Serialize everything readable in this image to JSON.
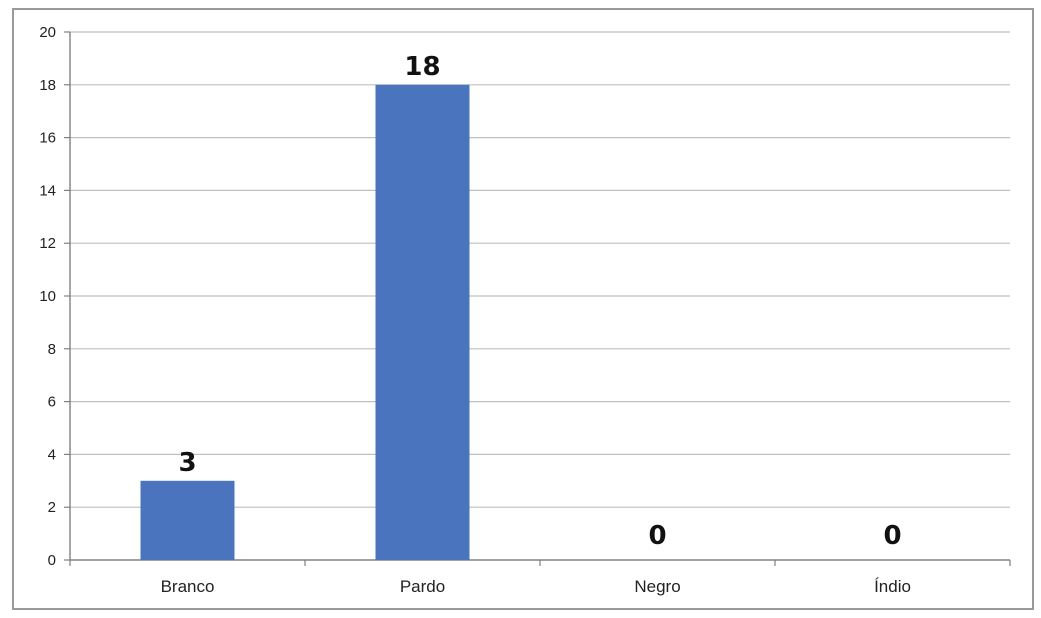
{
  "chart_data": {
    "type": "bar",
    "categories": [
      "Branco",
      "Pardo",
      "Negro",
      "Índio"
    ],
    "values": [
      3,
      18,
      0,
      0
    ],
    "data_labels": [
      "3",
      "18",
      "0",
      "0"
    ],
    "y_ticks": [
      "0",
      "2",
      "4",
      "6",
      "8",
      "10",
      "12",
      "14",
      "16",
      "18",
      "20"
    ],
    "ylim": [
      0,
      20
    ],
    "grid": true,
    "legend": "none",
    "bar_color": "#4a74be",
    "grid_color": "#bfbfbf"
  }
}
